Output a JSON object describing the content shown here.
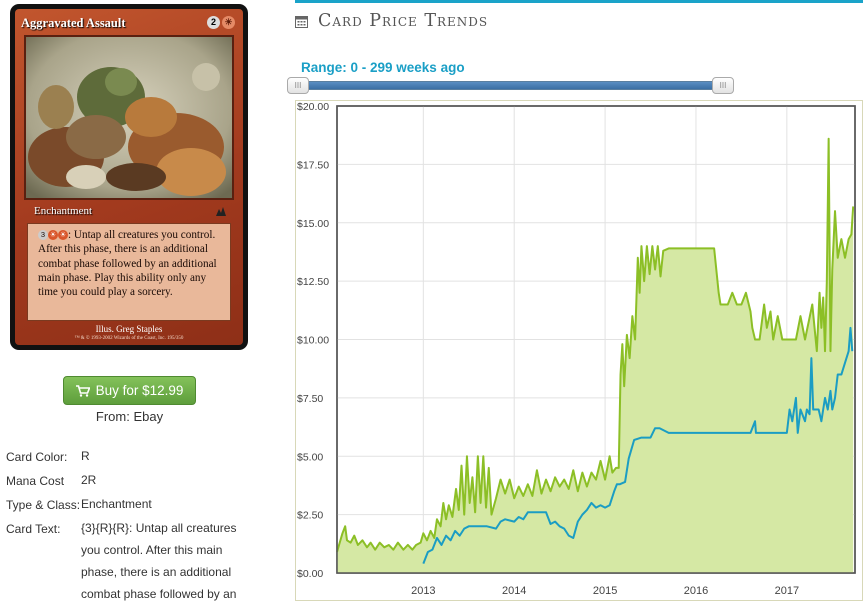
{
  "card": {
    "name": "Aggravated Assault",
    "mana_generic": "2",
    "type_line": "Enchantment",
    "rules_cost_generic": "3",
    "rules_text": ": Untap all creatures you control. After this phase, there is an additional combat phase followed by an additional main phase. Play this ability only any time you could play a sorcery.",
    "illustrator": "Illus. Greg Staples",
    "copyright": "™ & © 1993-2002 Wizards of the Coast, Inc. 195/350"
  },
  "buy": {
    "label": "Buy for $12.99",
    "from": "From: Ebay",
    "icon": "shopping-cart-icon"
  },
  "info": {
    "color_label": "Card Color:",
    "color_value": "R",
    "mana_label": "Mana Cost",
    "mana_value": "2R",
    "type_label": "Type & Class:",
    "type_value": "Enchantment",
    "text_label": "Card Text:",
    "text_value": "{3}{R}{R}: Untap all creatures you control. After this main phase, there is an additional combat phase followed by an"
  },
  "panel": {
    "title": "Card Price Trends",
    "title_icon": "calendar-icon",
    "range_label": "Range: 0 - 299 weeks ago",
    "accent": "#1aa3c9"
  },
  "chart_data": {
    "type": "area",
    "x_ticks": [
      "2013",
      "2014",
      "2015",
      "2016",
      "2017"
    ],
    "y_ticks": [
      "$0.00",
      "$2.50",
      "$5.00",
      "$7.50",
      "$10.00",
      "$12.50",
      "$15.00",
      "$17.50",
      "$20.00"
    ],
    "ylim": [
      0,
      20
    ],
    "xlim": [
      2012.05,
      2017.75
    ],
    "grid": true,
    "series": [
      {
        "color": "#8cbf26",
        "fill": "#d5e8a4",
        "points": [
          [
            2012.05,
            0.9
          ],
          [
            2012.08,
            1.3
          ],
          [
            2012.11,
            1.7
          ],
          [
            2012.14,
            2.0
          ],
          [
            2012.16,
            1.4
          ],
          [
            2012.2,
            1.3
          ],
          [
            2012.24,
            1.6
          ],
          [
            2012.28,
            1.2
          ],
          [
            2012.33,
            1.4
          ],
          [
            2012.38,
            1.1
          ],
          [
            2012.42,
            1.3
          ],
          [
            2012.47,
            1.0
          ],
          [
            2012.52,
            1.3
          ],
          [
            2012.57,
            1.1
          ],
          [
            2012.62,
            1.2
          ],
          [
            2012.67,
            1.0
          ],
          [
            2012.72,
            1.3
          ],
          [
            2012.78,
            1.0
          ],
          [
            2012.83,
            1.2
          ],
          [
            2012.88,
            1.0
          ],
          [
            2012.92,
            1.2
          ],
          [
            2012.97,
            1.3
          ],
          [
            2013.0,
            1.7
          ],
          [
            2013.04,
            1.4
          ],
          [
            2013.08,
            1.8
          ],
          [
            2013.12,
            1.5
          ],
          [
            2013.15,
            2.3
          ],
          [
            2013.19,
            2.0
          ],
          [
            2013.22,
            3.0
          ],
          [
            2013.25,
            2.3
          ],
          [
            2013.28,
            2.9
          ],
          [
            2013.32,
            2.4
          ],
          [
            2013.36,
            3.6
          ],
          [
            2013.39,
            2.7
          ],
          [
            2013.42,
            4.6
          ],
          [
            2013.45,
            2.5
          ],
          [
            2013.48,
            5.0
          ],
          [
            2013.51,
            3.0
          ],
          [
            2013.54,
            4.1
          ],
          [
            2013.57,
            2.6
          ],
          [
            2013.6,
            5.0
          ],
          [
            2013.63,
            3.0
          ],
          [
            2013.66,
            5.0
          ],
          [
            2013.69,
            2.8
          ],
          [
            2013.72,
            4.5
          ],
          [
            2013.75,
            2.5
          ],
          [
            2013.8,
            3.2
          ],
          [
            2013.85,
            4.0
          ],
          [
            2013.9,
            3.4
          ],
          [
            2013.95,
            4.0
          ],
          [
            2014.0,
            3.2
          ],
          [
            2014.05,
            3.7
          ],
          [
            2014.1,
            3.3
          ],
          [
            2014.15,
            3.8
          ],
          [
            2014.2,
            3.3
          ],
          [
            2014.25,
            4.4
          ],
          [
            2014.3,
            3.4
          ],
          [
            2014.35,
            4.0
          ],
          [
            2014.4,
            3.5
          ],
          [
            2014.45,
            4.1
          ],
          [
            2014.5,
            3.7
          ],
          [
            2014.55,
            4.0
          ],
          [
            2014.6,
            3.6
          ],
          [
            2014.65,
            4.4
          ],
          [
            2014.7,
            3.5
          ],
          [
            2014.75,
            4.3
          ],
          [
            2014.8,
            3.7
          ],
          [
            2014.85,
            4.3
          ],
          [
            2014.9,
            4.0
          ],
          [
            2014.95,
            4.8
          ],
          [
            2015.0,
            4.0
          ],
          [
            2015.05,
            5.0
          ],
          [
            2015.08,
            4.3
          ],
          [
            2015.12,
            4.5
          ],
          [
            2015.15,
            4.5
          ],
          [
            2015.17,
            8.5
          ],
          [
            2015.19,
            9.8
          ],
          [
            2015.21,
            8.0
          ],
          [
            2015.24,
            10.2
          ],
          [
            2015.27,
            9.2
          ],
          [
            2015.3,
            11.0
          ],
          [
            2015.33,
            10.0
          ],
          [
            2015.36,
            13.5
          ],
          [
            2015.38,
            12.0
          ],
          [
            2015.4,
            14.0
          ],
          [
            2015.43,
            12.5
          ],
          [
            2015.46,
            14.0
          ],
          [
            2015.49,
            12.8
          ],
          [
            2015.52,
            14.0
          ],
          [
            2015.55,
            13.0
          ],
          [
            2015.58,
            14.0
          ],
          [
            2015.61,
            12.7
          ],
          [
            2015.64,
            13.8
          ],
          [
            2015.7,
            13.9
          ],
          [
            2015.8,
            13.9
          ],
          [
            2015.9,
            13.9
          ],
          [
            2016.0,
            13.9
          ],
          [
            2016.1,
            13.9
          ],
          [
            2016.2,
            13.9
          ],
          [
            2016.25,
            12.0
          ],
          [
            2016.27,
            11.5
          ],
          [
            2016.3,
            11.5
          ],
          [
            2016.35,
            11.5
          ],
          [
            2016.4,
            12.0
          ],
          [
            2016.45,
            11.5
          ],
          [
            2016.5,
            11.5
          ],
          [
            2016.55,
            12.0
          ],
          [
            2016.6,
            11.2
          ],
          [
            2016.62,
            10.5
          ],
          [
            2016.65,
            10.0
          ],
          [
            2016.7,
            10.0
          ],
          [
            2016.75,
            11.5
          ],
          [
            2016.78,
            10.5
          ],
          [
            2016.82,
            11.2
          ],
          [
            2016.85,
            10.0
          ],
          [
            2016.9,
            11.0
          ],
          [
            2016.95,
            10.0
          ],
          [
            2017.0,
            10.0
          ],
          [
            2017.1,
            10.0
          ],
          [
            2017.15,
            11.0
          ],
          [
            2017.2,
            10.0
          ],
          [
            2017.28,
            11.5
          ],
          [
            2017.33,
            9.5
          ],
          [
            2017.36,
            12.0
          ],
          [
            2017.38,
            10.5
          ],
          [
            2017.4,
            11.8
          ],
          [
            2017.42,
            9.5
          ],
          [
            2017.44,
            12.5
          ],
          [
            2017.46,
            18.6
          ],
          [
            2017.48,
            9.5
          ],
          [
            2017.5,
            13.0
          ],
          [
            2017.53,
            15.5
          ],
          [
            2017.56,
            13.5
          ],
          [
            2017.6,
            14.3
          ],
          [
            2017.64,
            13.5
          ],
          [
            2017.68,
            14.3
          ],
          [
            2017.71,
            14.5
          ],
          [
            2017.73,
            15.7
          ]
        ]
      },
      {
        "color": "#1b9dc3",
        "points": [
          [
            2013.0,
            0.4
          ],
          [
            2013.05,
            0.9
          ],
          [
            2013.1,
            1.0
          ],
          [
            2013.15,
            1.5
          ],
          [
            2013.2,
            1.2
          ],
          [
            2013.25,
            1.6
          ],
          [
            2013.3,
            1.4
          ],
          [
            2013.35,
            1.8
          ],
          [
            2013.4,
            1.6
          ],
          [
            2013.45,
            1.9
          ],
          [
            2013.5,
            2.0
          ],
          [
            2013.6,
            2.0
          ],
          [
            2013.7,
            2.0
          ],
          [
            2013.8,
            1.9
          ],
          [
            2013.85,
            2.2
          ],
          [
            2013.9,
            2.3
          ],
          [
            2014.0,
            2.2
          ],
          [
            2014.05,
            2.4
          ],
          [
            2014.1,
            2.3
          ],
          [
            2014.15,
            2.6
          ],
          [
            2014.25,
            2.6
          ],
          [
            2014.35,
            2.6
          ],
          [
            2014.4,
            2.1
          ],
          [
            2014.45,
            2.2
          ],
          [
            2014.5,
            2.0
          ],
          [
            2014.55,
            1.9
          ],
          [
            2014.6,
            1.6
          ],
          [
            2014.65,
            1.5
          ],
          [
            2014.7,
            2.2
          ],
          [
            2014.75,
            2.5
          ],
          [
            2014.8,
            2.7
          ],
          [
            2014.85,
            3.0
          ],
          [
            2014.9,
            2.8
          ],
          [
            2014.95,
            2.9
          ],
          [
            2015.0,
            2.8
          ],
          [
            2015.05,
            2.9
          ],
          [
            2015.1,
            3.5
          ],
          [
            2015.13,
            3.8
          ],
          [
            2015.16,
            3.8
          ],
          [
            2015.22,
            3.9
          ],
          [
            2015.26,
            4.9
          ],
          [
            2015.32,
            5.7
          ],
          [
            2015.4,
            5.8
          ],
          [
            2015.5,
            5.8
          ],
          [
            2015.55,
            6.2
          ],
          [
            2015.6,
            6.2
          ],
          [
            2015.7,
            6.0
          ],
          [
            2015.8,
            6.0
          ],
          [
            2016.0,
            6.0
          ],
          [
            2016.2,
            6.0
          ],
          [
            2016.4,
            6.0
          ],
          [
            2016.6,
            6.0
          ],
          [
            2016.65,
            6.5
          ],
          [
            2016.66,
            6.0
          ],
          [
            2016.9,
            6.0
          ],
          [
            2017.0,
            6.0
          ],
          [
            2017.03,
            7.0
          ],
          [
            2017.06,
            6.5
          ],
          [
            2017.1,
            7.5
          ],
          [
            2017.12,
            6.0
          ],
          [
            2017.15,
            7.0
          ],
          [
            2017.2,
            6.5
          ],
          [
            2017.22,
            7.0
          ],
          [
            2017.25,
            6.8
          ],
          [
            2017.27,
            9.2
          ],
          [
            2017.29,
            7.0
          ],
          [
            2017.32,
            7.0
          ],
          [
            2017.35,
            7.0
          ],
          [
            2017.38,
            6.5
          ],
          [
            2017.42,
            7.5
          ],
          [
            2017.45,
            7.0
          ],
          [
            2017.48,
            7.8
          ],
          [
            2017.5,
            7.0
          ],
          [
            2017.53,
            7.5
          ],
          [
            2017.56,
            8.5
          ],
          [
            2017.6,
            8.5
          ],
          [
            2017.64,
            9.0
          ],
          [
            2017.68,
            9.5
          ],
          [
            2017.7,
            10.5
          ],
          [
            2017.72,
            9.5
          ]
        ]
      }
    ]
  }
}
